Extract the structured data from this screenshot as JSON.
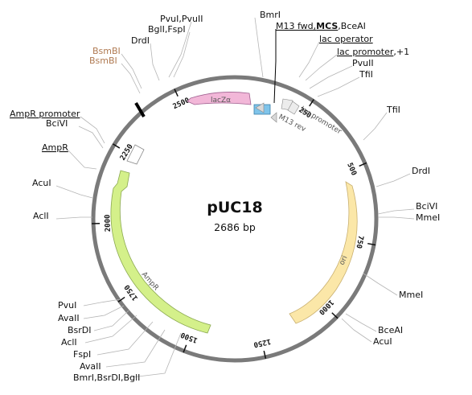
{
  "plasmid": {
    "name": "pUC18",
    "length_label": "2686 bp",
    "length": 2686
  },
  "tick_labels": [
    "250",
    "500",
    "750",
    "1000",
    "1250",
    "1500",
    "1750",
    "2000",
    "2250",
    "2500"
  ],
  "feature_labels": {
    "lacz": "lacZα",
    "mcs_box": "",
    "lac_promoter": "lac promoter",
    "m13_rev": "M13 rev",
    "ori": "ori",
    "ampr": "AmpR"
  },
  "site_labels": {
    "pvuI_pvuII": "PvuI,PvuII",
    "bglI_fspI": "BglI,FspI",
    "bmrI": "BmrI",
    "m13fwd_mcs_bceai_a": "M13 fwd,",
    "m13fwd_mcs_bceai_b": "MCS",
    "m13fwd_mcs_bceai_c": ",BceAI",
    "lac_operator": "lac operator",
    "lac_promoter_a": "lac promoter",
    "lac_promoter_b": ",+1",
    "pvuII": "PvuII",
    "tfiI_top": "TfiI",
    "tfiI_right": "TfiI",
    "drdI_top": "DrdI",
    "bsmBI_1": "BsmBI",
    "bsmBI_2": "BsmBI",
    "ampr_promoter": "AmpR promoter",
    "bciVI_left": "BciVI",
    "ampr": "AmpR",
    "acuI_left": "AcuI",
    "aclI_left": "AclI",
    "drdI_right": "DrdI",
    "bciVI_right": "BciVI",
    "mmeI_right": "MmeI",
    "mmeI_lower": "MmeI",
    "bceAI_lower": "BceAI",
    "acuI_lower": "AcuI",
    "pvuI": "PvuI",
    "avaII_1": "AvaII",
    "bsrDI": "BsrDI",
    "aclI_lower": "AclI",
    "fspI": "FspI",
    "avaII_2": "AvaII",
    "bmrI_bsrDI_bglI": "BmrI,BsrDI,BglI"
  },
  "colors": {
    "backbone": "#7a7a7a",
    "lacz": "#f2b7d8",
    "mcs": "#7fc4ea",
    "ori": "#fbe7a8",
    "ampr": "#d4f08a",
    "promoter": "#ffffff",
    "leader": "#b5b5b5",
    "enzyme_brown": "#b07a52"
  }
}
